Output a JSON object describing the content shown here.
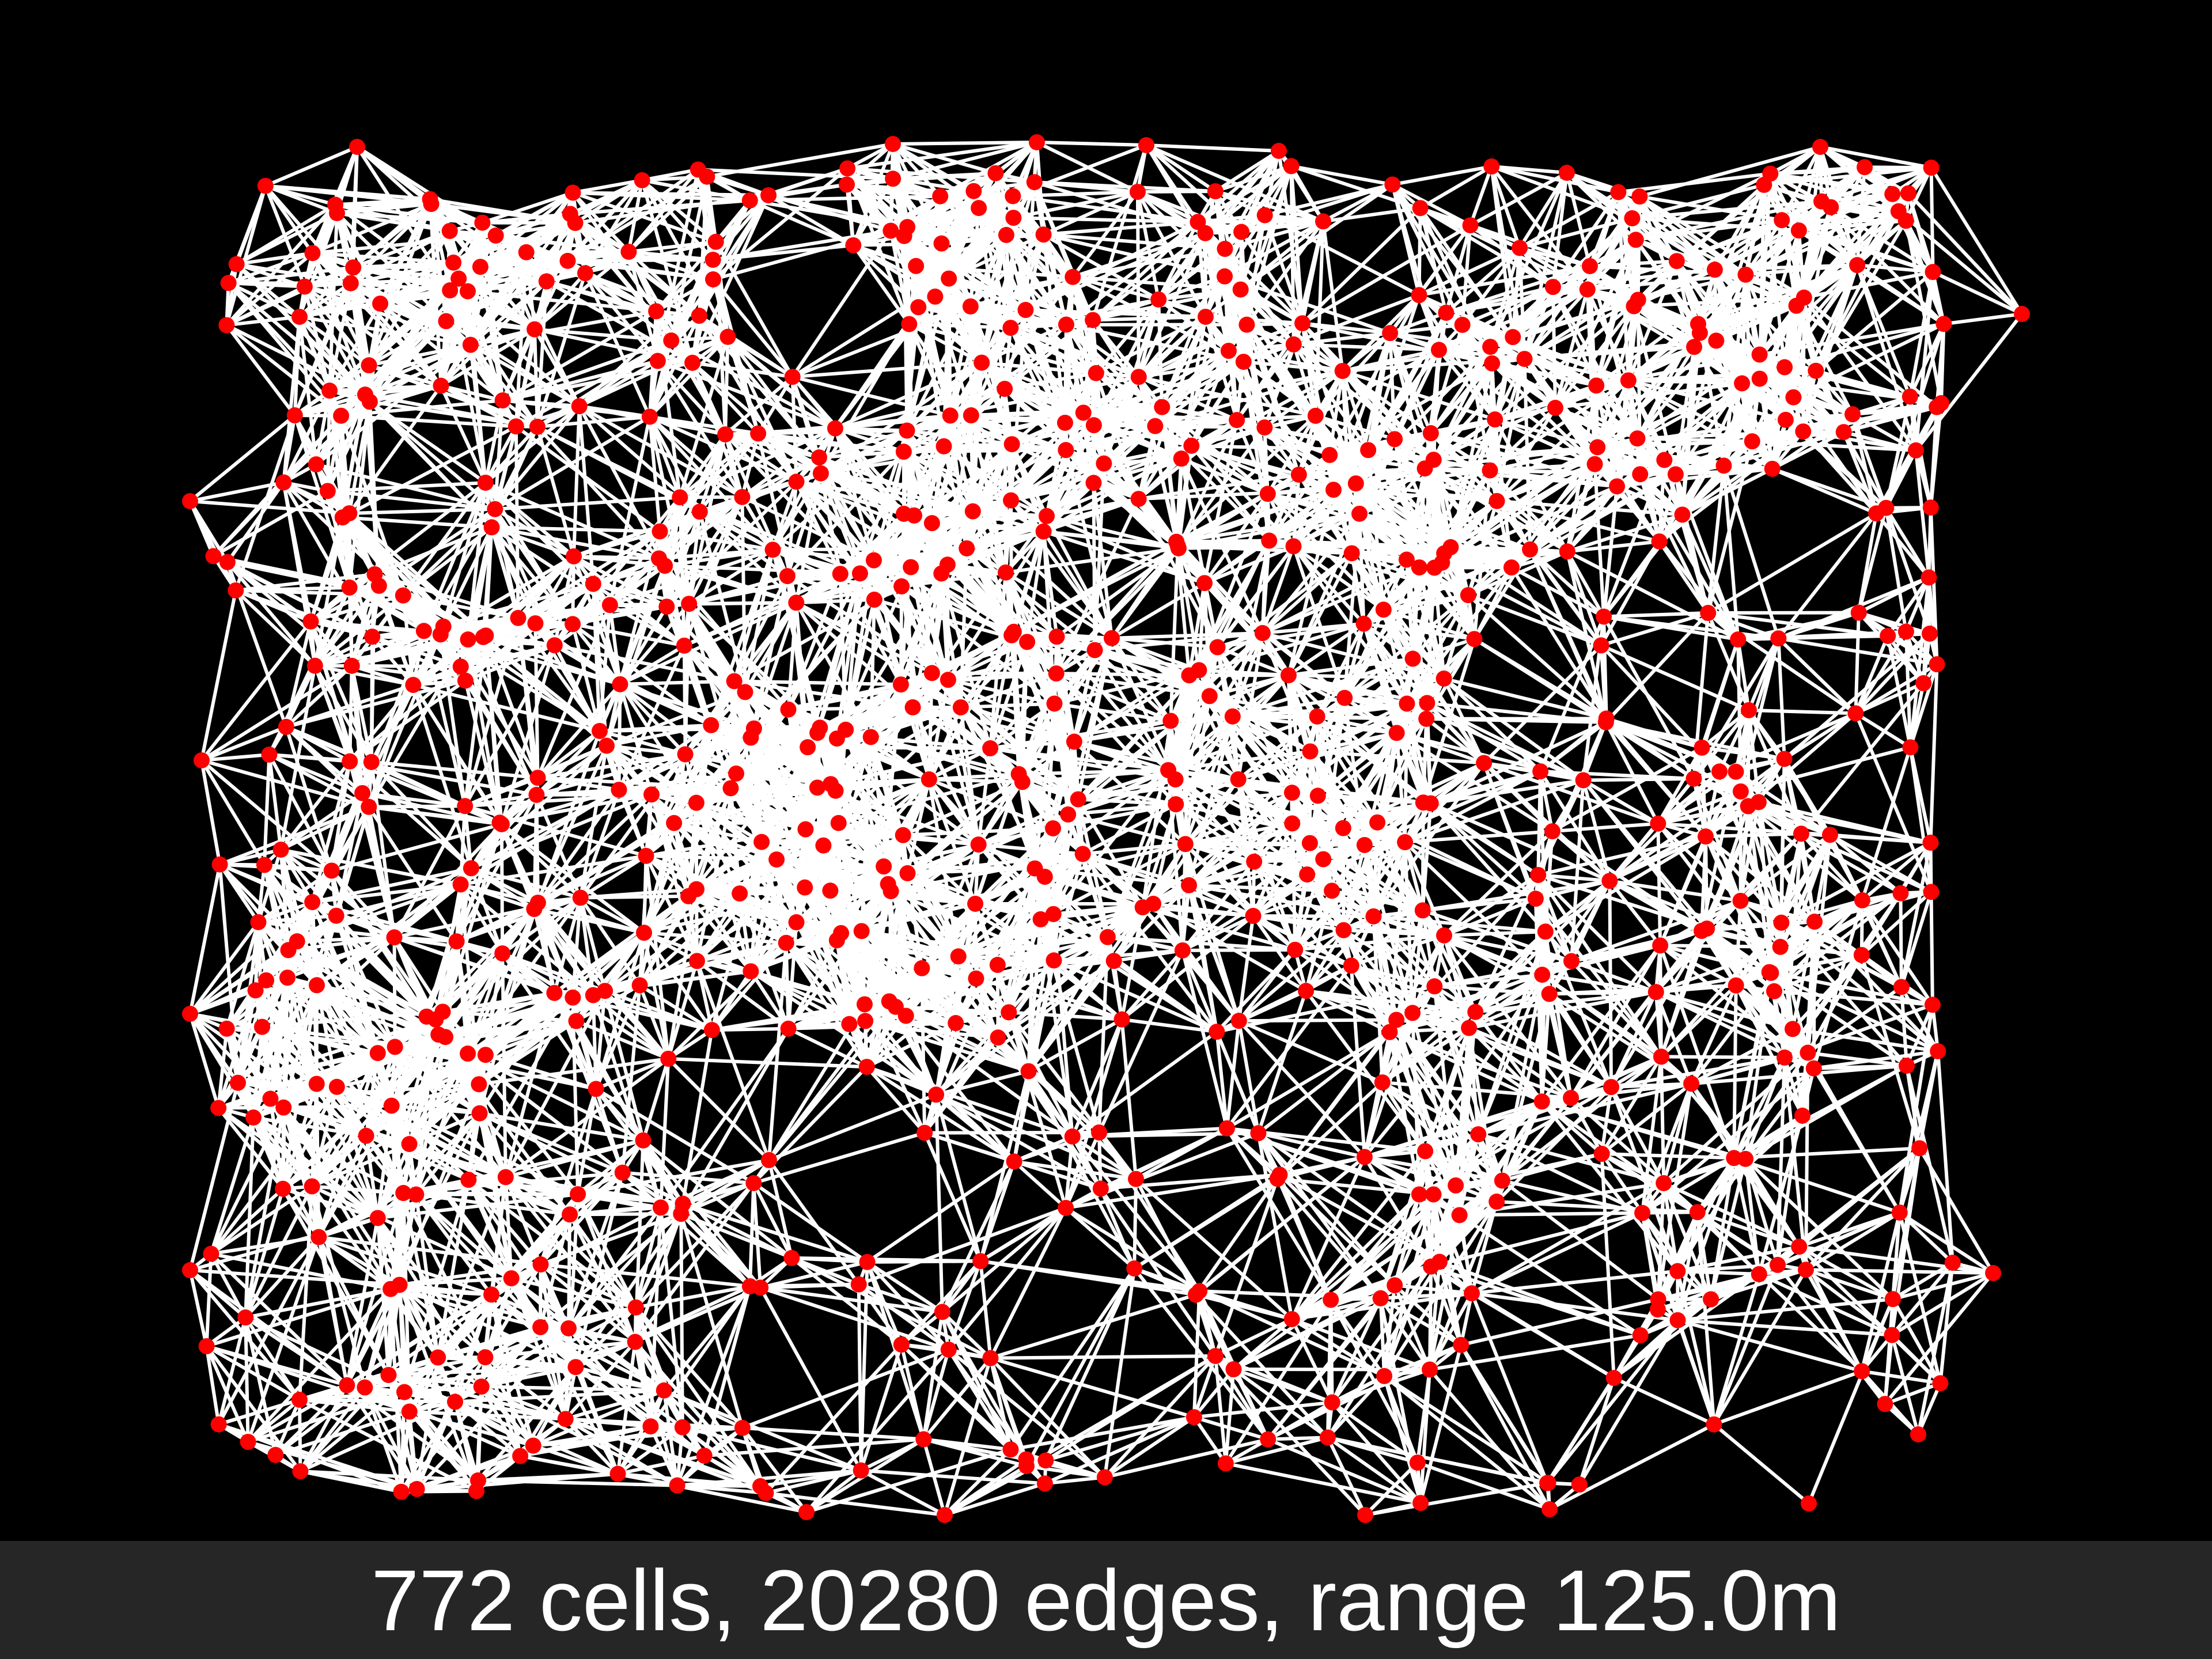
{
  "caption": "772 cells, 20280 edges, range 125.0m",
  "colors": {
    "background": "#000000",
    "footer": "#262626",
    "node": "#ff0000",
    "edge": "#ffffff",
    "caption_text": "#ffffff"
  },
  "icons": {
    "node": "red-dot",
    "edge": "white-line"
  },
  "network": {
    "cells": 772,
    "edges": 20280,
    "range_m": 125.0
  }
}
